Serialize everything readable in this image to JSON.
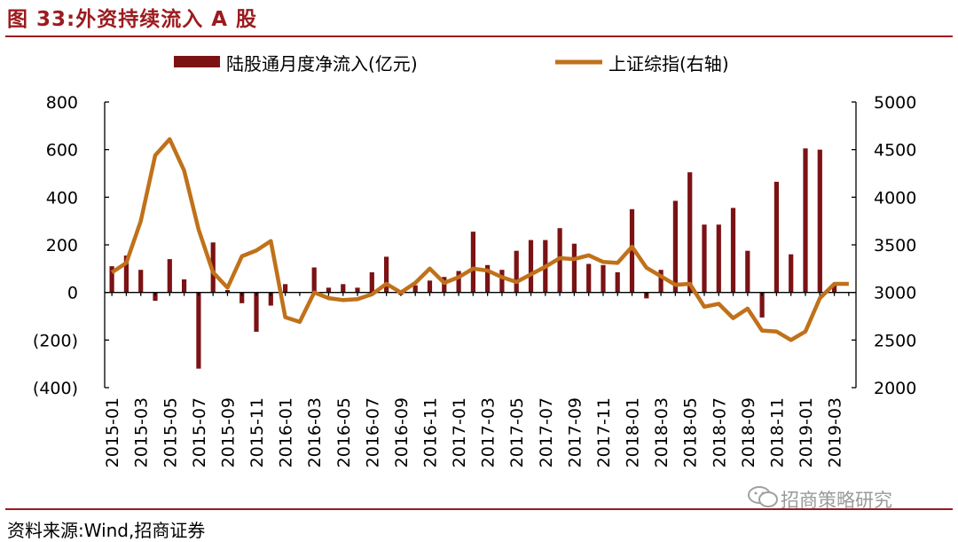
{
  "header": {
    "title": "图 33:外资持续流入 A 股"
  },
  "footer": {
    "source": "资料来源:Wind,招商证券",
    "watermark": "招商策略研究"
  },
  "colors": {
    "bar": "#7B1214",
    "line": "#C0711A",
    "negative_label": "#E00000",
    "rule": "#9B1B1E"
  },
  "chart_data": {
    "type": "bar+line",
    "title": "外资持续流入 A 股",
    "legend": [
      {
        "name": "陆股通月度净流入(亿元",
        "kind": "bar"
      },
      {
        "name": "上证综指(右轴",
        "kind": "line"
      }
    ],
    "categories": [
      "2015-01",
      "2015-02",
      "2015-03",
      "2015-04",
      "2015-05",
      "2015-06",
      "2015-07",
      "2015-08",
      "2015-09",
      "2015-10",
      "2015-11",
      "2015-12",
      "2016-01",
      "2016-02",
      "2016-03",
      "2016-04",
      "2016-05",
      "2016-06",
      "2016-07",
      "2016-08",
      "2016-09",
      "2016-10",
      "2016-11",
      "2016-12",
      "2017-01",
      "2017-02",
      "2017-03",
      "2017-04",
      "2017-05",
      "2017-06",
      "2017-07",
      "2017-08",
      "2017-09",
      "2017-10",
      "2017-11",
      "2017-12",
      "2018-01",
      "2018-02",
      "2018-03",
      "2018-04",
      "2018-05",
      "2018-06",
      "2018-07",
      "2018-08",
      "2018-09",
      "2018-10",
      "2018-11",
      "2018-12",
      "2019-01",
      "2019-02",
      "2019-03",
      "2019-04"
    ],
    "x_tick_labels": [
      "2015-01",
      "2015-03",
      "2015-05",
      "2015-07",
      "2015-09",
      "2015-11",
      "2016-01",
      "2016-03",
      "2016-05",
      "2016-07",
      "2016-09",
      "2016-11",
      "2017-01",
      "2017-03",
      "2017-05",
      "2017-07",
      "2017-09",
      "2017-11",
      "2018-01",
      "2018-03",
      "2018-05",
      "2018-07",
      "2018-09",
      "2018-11",
      "2019-01",
      "2019-03"
    ],
    "series": [
      {
        "name": "陆股通月度净流入(亿元)",
        "axis": "left",
        "type": "bar",
        "values": [
          110,
          155,
          95,
          -35,
          140,
          55,
          -320,
          210,
          10,
          -45,
          -165,
          -55,
          35,
          0,
          105,
          20,
          35,
          20,
          85,
          150,
          -10,
          30,
          50,
          65,
          90,
          255,
          115,
          95,
          175,
          220,
          220,
          270,
          205,
          120,
          115,
          85,
          350,
          -25,
          95,
          385,
          505,
          285,
          285,
          355,
          175,
          -105,
          465,
          160,
          605,
          600,
          30,
          0
        ]
      },
      {
        "name": "上证综指(右轴)",
        "axis": "right",
        "type": "line",
        "values": [
          3210,
          3310,
          3750,
          4440,
          4610,
          4280,
          3660,
          3210,
          3050,
          3380,
          3440,
          3540,
          2740,
          2690,
          3000,
          2940,
          2920,
          2930,
          2980,
          3090,
          3000,
          3100,
          3250,
          3100,
          3160,
          3250,
          3230,
          3160,
          3110,
          3190,
          3270,
          3360,
          3350,
          3390,
          3320,
          3310,
          3480,
          3260,
          3170,
          3080,
          3090,
          2850,
          2880,
          2730,
          2830,
          2600,
          2590,
          2500,
          2590,
          2940,
          3090,
          3090
        ]
      }
    ],
    "y_left": {
      "ticks": [
        800,
        600,
        400,
        200,
        0,
        -200,
        -400
      ],
      "tick_labels": [
        "800",
        "600",
        "400",
        "200",
        "0",
        "(200)",
        "(400)"
      ],
      "range": [
        -400,
        800
      ]
    },
    "y_right": {
      "ticks": [
        5000,
        4500,
        4000,
        3500,
        3000,
        2500,
        2000
      ],
      "tick_labels": [
        "5000",
        "4500",
        "4000",
        "3500",
        "3000",
        "2500",
        "2000"
      ],
      "range": [
        2000,
        5000
      ]
    }
  }
}
